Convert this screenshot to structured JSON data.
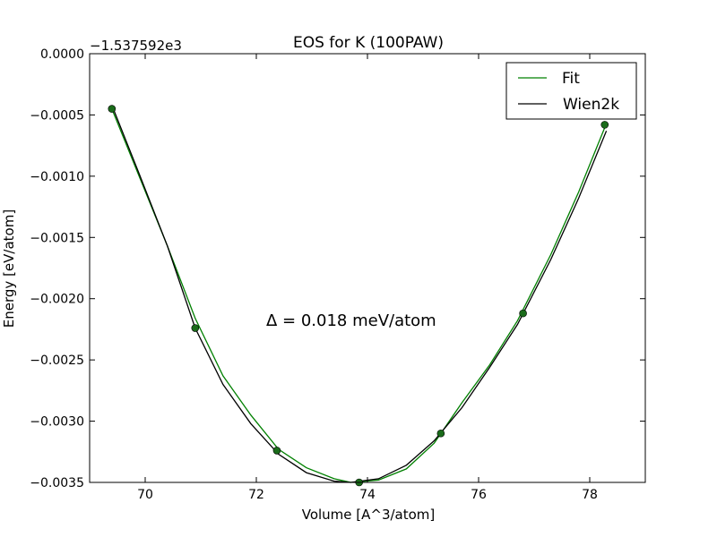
{
  "chart_data": {
    "type": "line",
    "title": "EOS for K (100PAW)",
    "xlabel": "Volume [A^3/atom]",
    "ylabel": "Energy [eV/atom]",
    "offset_label": "−1.537592e3",
    "annotation": "Δ = 0.018 meV/atom",
    "xlim": [
      69,
      79
    ],
    "ylim": [
      -0.0035,
      0.0
    ],
    "xticks": [
      70,
      72,
      74,
      76,
      78
    ],
    "xtick_labels": [
      "70",
      "72",
      "74",
      "76",
      "78"
    ],
    "yticks": [
      0.0,
      -0.0005,
      -0.001,
      -0.0015,
      -0.002,
      -0.0025,
      -0.003,
      -0.0035
    ],
    "ytick_labels": [
      "0.0000",
      "−0.0005",
      "−0.0010",
      "−0.0015",
      "−0.0020",
      "−0.0025",
      "−0.0030",
      "−0.0035"
    ],
    "legend_position": "top-right",
    "grid": false,
    "series": [
      {
        "name": "Fit",
        "color": "#008000",
        "style": "line",
        "points": [
          [
            69.4,
            -0.00045
          ],
          [
            69.9,
            -0.00101
          ],
          [
            70.4,
            -0.00157
          ],
          [
            70.9,
            -0.00216
          ],
          [
            71.4,
            -0.00263
          ],
          [
            71.9,
            -0.00295
          ],
          [
            72.4,
            -0.00323
          ],
          [
            72.9,
            -0.00338
          ],
          [
            73.4,
            -0.00347
          ],
          [
            73.7,
            -0.0035
          ],
          [
            74.2,
            -0.00348
          ],
          [
            74.7,
            -0.00339
          ],
          [
            75.2,
            -0.00318
          ],
          [
            75.7,
            -0.00285
          ],
          [
            76.2,
            -0.00254
          ],
          [
            76.7,
            -0.00218
          ],
          [
            77.3,
            -0.00164
          ],
          [
            77.8,
            -0.00113
          ],
          [
            78.3,
            -0.00057
          ]
        ]
      },
      {
        "name": "Wien2k",
        "color": "#000000",
        "style": "line",
        "points": [
          [
            69.4,
            -0.00042
          ],
          [
            69.9,
            -0.00099
          ],
          [
            70.4,
            -0.00157
          ],
          [
            70.9,
            -0.00224
          ],
          [
            71.4,
            -0.0027
          ],
          [
            71.9,
            -0.00302
          ],
          [
            72.4,
            -0.00327
          ],
          [
            72.9,
            -0.00342
          ],
          [
            73.4,
            -0.00349
          ],
          [
            73.7,
            -0.0035
          ],
          [
            74.2,
            -0.00347
          ],
          [
            74.7,
            -0.00336
          ],
          [
            75.2,
            -0.00316
          ],
          [
            75.7,
            -0.00289
          ],
          [
            76.2,
            -0.00256
          ],
          [
            76.7,
            -0.00221
          ],
          [
            77.3,
            -0.00168
          ],
          [
            77.8,
            -0.00118
          ],
          [
            78.3,
            -0.00063
          ]
        ]
      },
      {
        "name": "data",
        "color": "#1a6b1a",
        "style": "markers",
        "points": [
          [
            69.4,
            -0.00045
          ],
          [
            70.9,
            -0.00224
          ],
          [
            72.37,
            -0.00324
          ],
          [
            73.85,
            -0.0035
          ],
          [
            75.32,
            -0.0031
          ],
          [
            76.8,
            -0.00212
          ],
          [
            78.27,
            -0.00058
          ]
        ]
      }
    ]
  }
}
